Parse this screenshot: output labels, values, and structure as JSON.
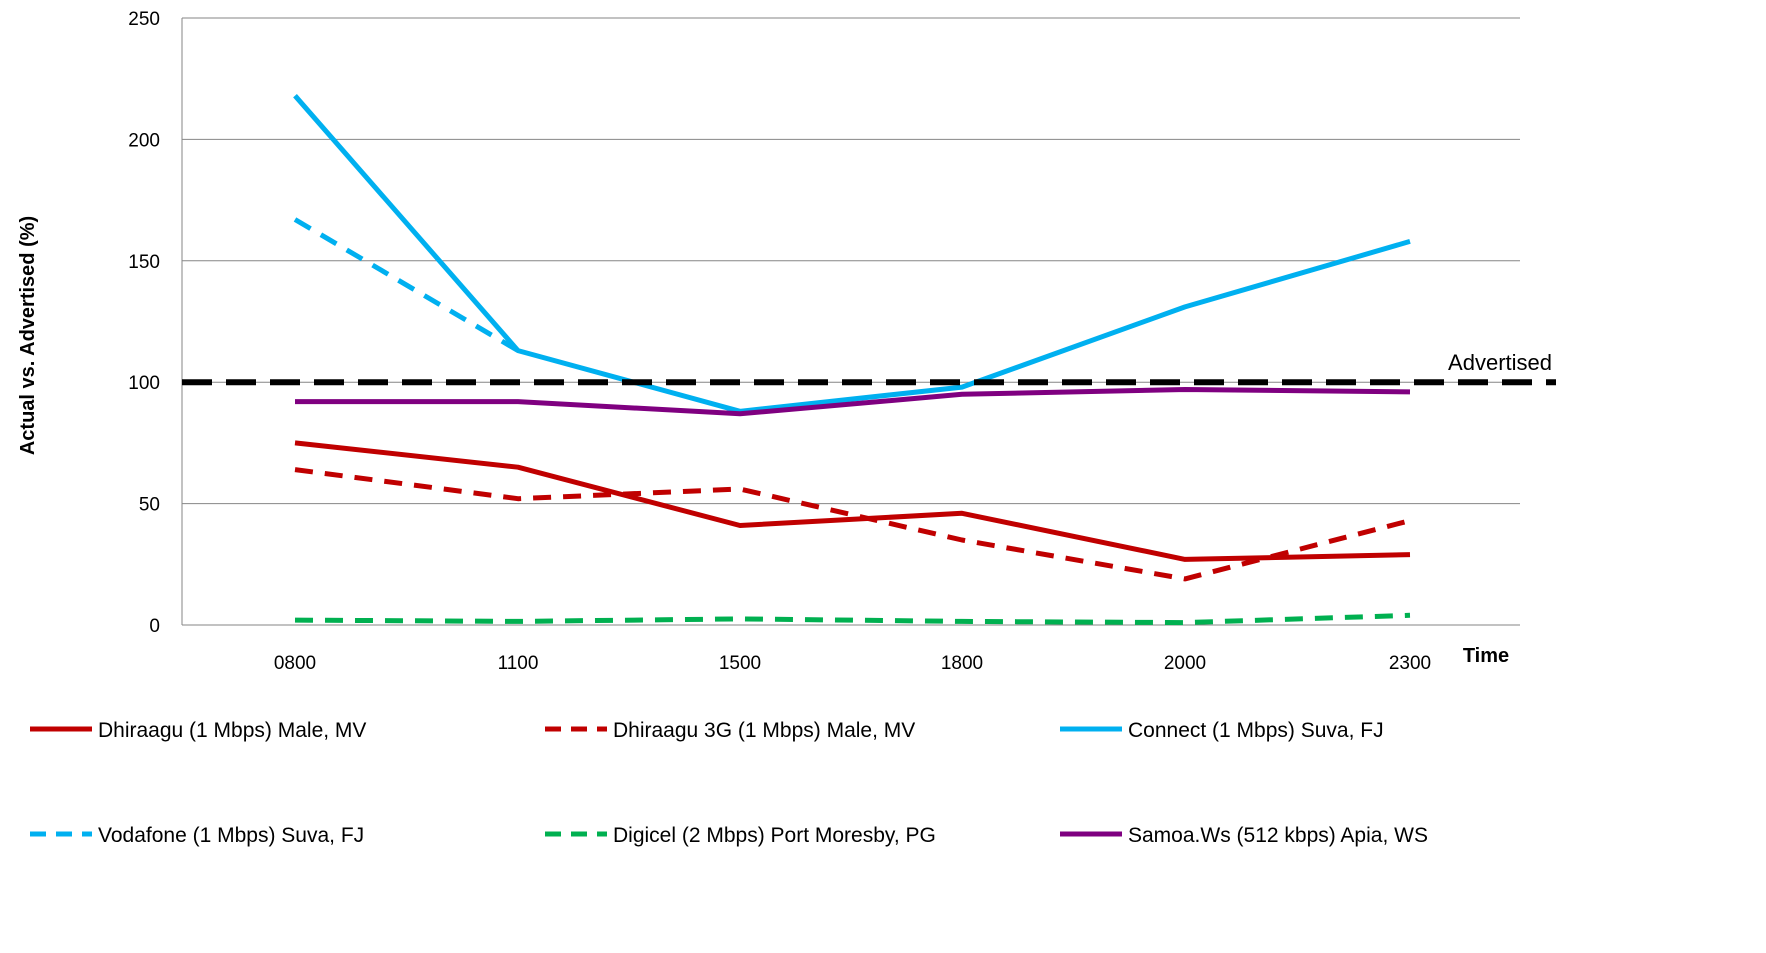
{
  "chart_data": {
    "type": "line",
    "xlabel": "Time",
    "ylabel": "Actual vs. Advertised (%)",
    "categories": [
      "0800",
      "1100",
      "1500",
      "1800",
      "2000",
      "2300"
    ],
    "ylim": [
      0,
      250
    ],
    "yticks": [
      0,
      50,
      100,
      150,
      200,
      250
    ],
    "grid": true,
    "legend_position": "bottom",
    "reference_line": {
      "value": 100,
      "label": "Advertised",
      "color": "#000000",
      "style": "dashed"
    },
    "series": [
      {
        "name": "Dhiraagu (1 Mbps) Male, MV",
        "color": "#C00000",
        "style": "solid",
        "values": [
          75,
          65,
          41,
          46,
          27,
          29
        ]
      },
      {
        "name": "Dhiraagu 3G (1 Mbps) Male, MV",
        "color": "#C00000",
        "style": "dashed",
        "values": [
          64,
          52,
          56,
          35,
          19,
          43
        ]
      },
      {
        "name": "Connect (1 Mbps) Suva, FJ",
        "color": "#00B0F0",
        "style": "solid",
        "values": [
          218,
          113,
          88,
          98,
          131,
          158
        ]
      },
      {
        "name": "Vodafone (1 Mbps) Suva, FJ",
        "color": "#00B0F0",
        "style": "dashed",
        "values": [
          167,
          113,
          null,
          null,
          null,
          null
        ]
      },
      {
        "name": "Digicel (2 Mbps) Port Moresby, PG",
        "color": "#00B050",
        "style": "dashed",
        "values": [
          2,
          1.5,
          2.5,
          1.5,
          1,
          4
        ]
      },
      {
        "name": "Samoa.Ws (512 kbps) Apia, WS",
        "color": "#7F0080",
        "style": "solid",
        "values": [
          92,
          92,
          87,
          95,
          97,
          96
        ]
      }
    ]
  }
}
